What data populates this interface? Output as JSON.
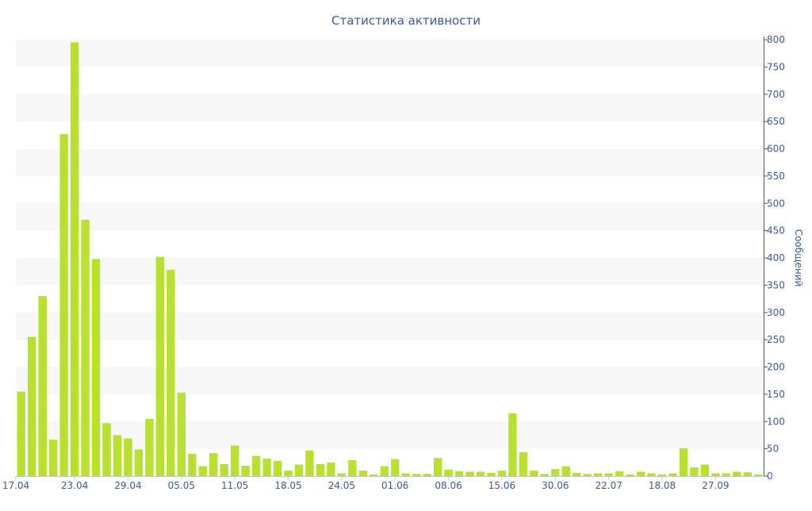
{
  "chart_data": {
    "type": "bar",
    "title": "Статистика активности",
    "xlabel": "",
    "ylabel": "Сообщений",
    "ylim": [
      0,
      800
    ],
    "yticks": [
      0,
      50,
      100,
      150,
      200,
      250,
      300,
      350,
      400,
      450,
      500,
      550,
      600,
      650,
      700,
      750,
      800
    ],
    "y_axis_position": "right",
    "grid": "alternating horizontal bands",
    "bar_color": "#b8e02e",
    "band_color": "#f7f7f7",
    "text_color": "#3d5a99",
    "x_tick_labels": [
      {
        "index": 0,
        "label": "17.04"
      },
      {
        "index": 5,
        "label": "23.04"
      },
      {
        "index": 10,
        "label": "29.04"
      },
      {
        "index": 15,
        "label": "05.05"
      },
      {
        "index": 20,
        "label": "11.05"
      },
      {
        "index": 25,
        "label": "18.05"
      },
      {
        "index": 30,
        "label": "24.05"
      },
      {
        "index": 35,
        "label": "01.06"
      },
      {
        "index": 40,
        "label": "08.06"
      },
      {
        "index": 45,
        "label": "15.06"
      },
      {
        "index": 50,
        "label": "30.06"
      },
      {
        "index": 55,
        "label": "22.07"
      },
      {
        "index": 60,
        "label": "18.08"
      },
      {
        "index": 65,
        "label": "27.09"
      }
    ],
    "values": [
      155,
      255,
      330,
      67,
      627,
      795,
      470,
      398,
      97,
      75,
      69,
      49,
      105,
      402,
      378,
      153,
      41,
      18,
      42,
      22,
      56,
      19,
      37,
      32,
      28,
      10,
      21,
      47,
      22,
      25,
      5,
      29,
      10,
      3,
      18,
      31,
      5,
      4,
      4,
      33,
      12,
      9,
      8,
      8,
      6,
      10,
      115,
      44,
      10,
      4,
      13,
      18,
      6,
      4,
      5,
      5,
      9,
      3,
      8,
      5,
      3,
      5,
      51,
      16,
      21,
      5,
      5,
      8,
      7,
      3
    ]
  }
}
